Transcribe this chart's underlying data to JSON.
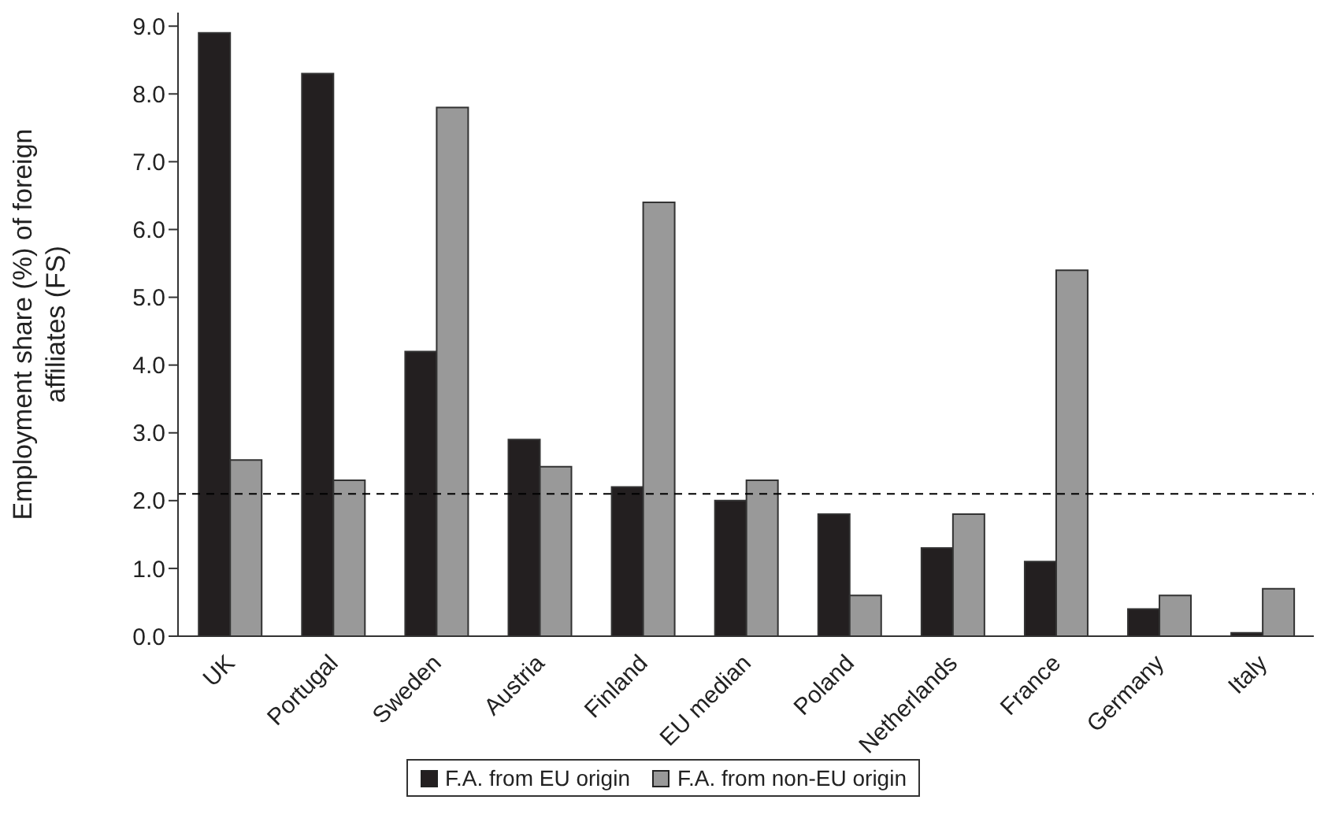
{
  "chart_data": {
    "type": "bar",
    "ylabel": "Employment share (%) of foreign affiliates (FS)",
    "categories": [
      "UK",
      "Portugal",
      "Sweden",
      "Austria",
      "Finland",
      "EU median",
      "Poland",
      "Netherlands",
      "France",
      "Germany",
      "Italy"
    ],
    "series": [
      {
        "name": "F.A. from EU origin",
        "color": "#231f20",
        "values": [
          8.9,
          8.3,
          4.2,
          2.9,
          2.2,
          2.0,
          1.8,
          1.3,
          1.1,
          0.4,
          0.05
        ]
      },
      {
        "name": "F.A. from non-EU origin",
        "color": "#999999",
        "values": [
          2.6,
          2.3,
          7.8,
          2.5,
          6.4,
          2.3,
          0.6,
          1.8,
          5.4,
          0.6,
          0.7
        ]
      }
    ],
    "ylim": [
      0,
      9.2
    ],
    "yticks": [
      {
        "value": 0,
        "label": "0.0"
      },
      {
        "value": 1,
        "label": "1.0"
      },
      {
        "value": 2,
        "label": "2.0"
      },
      {
        "value": 3,
        "label": "3.0"
      },
      {
        "value": 4,
        "label": "4.0"
      },
      {
        "value": 5,
        "label": "5.0"
      },
      {
        "value": 6,
        "label": "6.0"
      },
      {
        "value": 7,
        "label": "7.0"
      },
      {
        "value": 8,
        "label": "8.0"
      },
      {
        "value": 9,
        "label": "9.0"
      }
    ],
    "ref_lines": [
      {
        "axis": "y",
        "value": 2.1,
        "color": "#000000",
        "line_style": "dashed"
      }
    ],
    "grid": false,
    "legend": "bottom"
  }
}
